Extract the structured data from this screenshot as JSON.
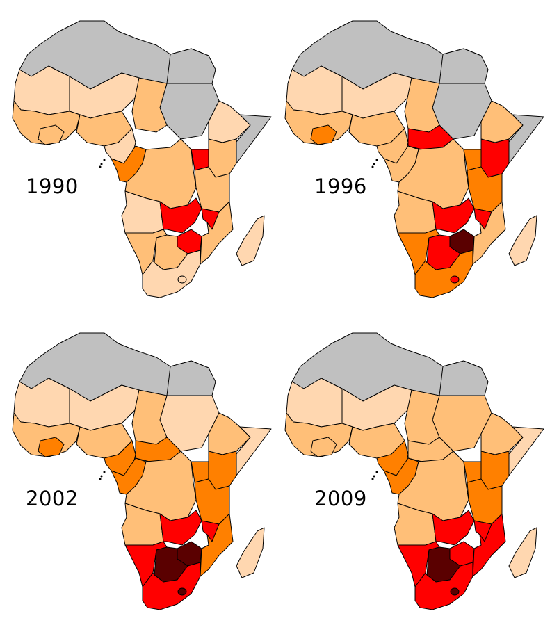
{
  "legend_colors": {
    "no_data": "#c0c0c0",
    "very_low": "#ffd7b0",
    "low": "#ffbf78",
    "medium": "#ff8000",
    "high": "#ff0000",
    "very_high": "#5a0000"
  },
  "maps": [
    {
      "year": "1990",
      "regions": {
        "north_africa": "no_data",
        "sudan": "no_data",
        "egypt": "no_data",
        "west_sahara_mauritania": "very_low",
        "west_africa_coast": "low",
        "ivory_coast": "low",
        "mali_niger": "very_low",
        "nigeria": "low",
        "chad": "low",
        "cameroon": "very_low",
        "ethiopia": "very_low",
        "somalia": "no_data",
        "gabon_congo": "medium",
        "drc": "low",
        "uganda": "high",
        "kenya": "low",
        "tanzania": "low",
        "angola": "very_low",
        "zambia": "high",
        "malawi_moz_north": "high",
        "zimbabwe": "high",
        "mozambique": "low",
        "namibia": "low",
        "botswana": "low",
        "south_africa": "very_low",
        "madagascar": "very_low"
      }
    },
    {
      "year": "1996",
      "regions": {
        "north_africa": "no_data",
        "sudan": "no_data",
        "egypt": "no_data",
        "west_sahara_mauritania": "very_low",
        "west_africa_coast": "low",
        "ivory_coast": "medium",
        "mali_niger": "very_low",
        "nigeria": "low",
        "chad": "low",
        "cameroon": "low",
        "ethiopia": "low",
        "somalia": "no_data",
        "car": "high",
        "gabon_congo": "low",
        "drc": "low",
        "uganda": "medium",
        "kenya": "high",
        "tanzania": "medium",
        "angola": "low",
        "zambia": "high",
        "malawi_moz_north": "high",
        "zimbabwe": "very_high",
        "mozambique": "low",
        "namibia": "medium",
        "botswana": "high",
        "south_africa": "medium",
        "madagascar": "very_low"
      }
    },
    {
      "year": "2002",
      "regions": {
        "north_africa": "no_data",
        "sudan": "very_low",
        "egypt": "no_data",
        "west_sahara_mauritania": "very_low",
        "west_africa_coast": "low",
        "ivory_coast": "medium",
        "mali_niger": "very_low",
        "nigeria": "low",
        "chad": "low",
        "cameroon": "medium",
        "car": "medium",
        "ethiopia": "low",
        "somalia": "very_low",
        "gabon_congo": "medium",
        "drc": "low",
        "uganda": "medium",
        "kenya": "medium",
        "tanzania": "medium",
        "angola": "low",
        "zambia": "high",
        "malawi_moz_north": "high",
        "zimbabwe": "very_high",
        "mozambique": "medium",
        "namibia": "high",
        "botswana": "very_high",
        "south_africa": "high",
        "madagascar": "very_low"
      }
    },
    {
      "year": "2009",
      "regions": {
        "north_africa": "no_data",
        "sudan": "low",
        "egypt": "no_data",
        "west_sahara_mauritania": "very_low",
        "west_africa_coast": "low",
        "ivory_coast": "low",
        "mali_niger": "very_low",
        "nigeria": "low",
        "chad": "low",
        "cameroon": "medium",
        "car": "low",
        "ethiopia": "low",
        "somalia": "very_low",
        "gabon_congo": "medium",
        "drc": "low",
        "uganda": "medium",
        "kenya": "medium",
        "tanzania": "medium",
        "angola": "low",
        "zambia": "high",
        "malawi_moz_north": "high",
        "zimbabwe": "high",
        "mozambique": "high",
        "namibia": "high",
        "botswana": "very_high",
        "south_africa": "high",
        "madagascar": "very_low"
      }
    }
  ]
}
